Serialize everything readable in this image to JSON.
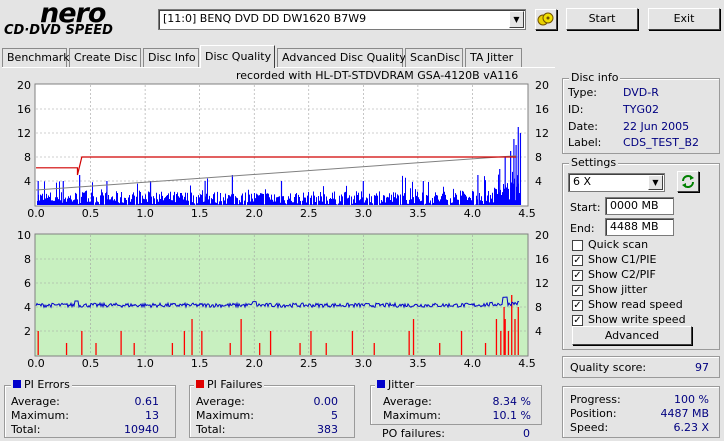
{
  "logo": {
    "nero": "nero",
    "sub": "CD·DVD SPEED"
  },
  "drive_select": {
    "value": "[11:0]  BENQ DVD DD DW1620 B7W9"
  },
  "buttons": {
    "start": "Start",
    "exit": "Exit",
    "advanced": "Advanced"
  },
  "tabs": [
    {
      "label": "Benchmark",
      "active": false
    },
    {
      "label": "Create Disc",
      "active": false
    },
    {
      "label": "Disc Info",
      "active": false
    },
    {
      "label": "Disc Quality",
      "active": true
    },
    {
      "label": "Advanced Disc Quality",
      "active": false
    },
    {
      "label": "ScanDisc",
      "active": false
    },
    {
      "label": "TA Jitter",
      "active": false
    }
  ],
  "recorded_with": "recorded with HL-DT-STDVDRAM GSA-4120B vA116",
  "disc_info": {
    "title": "Disc info",
    "rows": [
      {
        "label": "Type:",
        "value": "DVD-R"
      },
      {
        "label": "ID:",
        "value": "TYG02"
      },
      {
        "label": "Date:",
        "value": "22 Jun 2005"
      },
      {
        "label": "Label:",
        "value": "CDS_TEST_B2"
      }
    ]
  },
  "settings": {
    "title": "Settings",
    "speed": "6 X",
    "start_label": "Start:",
    "start_value": "0000 MB",
    "end_label": "End:",
    "end_value": "4488 MB",
    "checks": [
      {
        "label": "Quick scan",
        "checked": false
      },
      {
        "label": "Show C1/PIE",
        "checked": true
      },
      {
        "label": "Show C2/PIF",
        "checked": true
      },
      {
        "label": "Show jitter",
        "checked": true
      },
      {
        "label": "Show read speed",
        "checked": true
      },
      {
        "label": "Show write speed",
        "checked": true
      }
    ]
  },
  "quality": {
    "label": "Quality score:",
    "value": "97"
  },
  "progress": {
    "rows": [
      {
        "label": "Progress:",
        "value": "100 %"
      },
      {
        "label": "Position:",
        "value": "4487 MB"
      },
      {
        "label": "Speed:",
        "value": "6.23 X"
      }
    ]
  },
  "pi_errors": {
    "title": "PI Errors",
    "color": "#0000cc",
    "rows": [
      {
        "label": "Average:",
        "value": "0.61"
      },
      {
        "label": "Maximum:",
        "value": "13"
      },
      {
        "label": "Total:",
        "value": "10940"
      }
    ]
  },
  "pi_failures": {
    "title": "PI Failures",
    "color": "#e00000",
    "rows": [
      {
        "label": "Average:",
        "value": "0.00"
      },
      {
        "label": "Maximum:",
        "value": "5"
      },
      {
        "label": "Total:",
        "value": "383"
      }
    ]
  },
  "jitter": {
    "title": "Jitter",
    "color": "#0000cc",
    "rows": [
      {
        "label": "Average:",
        "value": "8.34 %"
      },
      {
        "label": "Maximum:",
        "value": "10.1 %"
      }
    ],
    "po_label": "PO failures:",
    "po_value": "0"
  },
  "chart_data": [
    {
      "type": "bar",
      "name": "PI Errors",
      "xlim": [
        0,
        4.5
      ],
      "ylim": [
        0,
        20
      ],
      "x_ticks": [
        "0.0",
        "0.5",
        "1.0",
        "1.5",
        "2.0",
        "2.5",
        "3.0",
        "3.5",
        "4.0",
        "4.5"
      ],
      "y_ticks_left": [
        "20",
        "16",
        "12",
        "8",
        "4"
      ],
      "y_ticks_right": [
        "20",
        "16",
        "12",
        "8",
        "4"
      ],
      "series": [
        {
          "kind": "pi_errors_bars",
          "color": "#0000ff",
          "baseline_range": [
            0,
            2
          ],
          "spikes": [
            {
              "x": 0.02,
              "y": 4
            },
            {
              "x": 0.25,
              "y": 4
            },
            {
              "x": 0.4,
              "y": 5
            },
            {
              "x": 0.65,
              "y": 4
            },
            {
              "x": 1.05,
              "y": 4
            },
            {
              "x": 1.55,
              "y": 4
            },
            {
              "x": 1.8,
              "y": 5
            },
            {
              "x": 2.25,
              "y": 4
            },
            {
              "x": 3.0,
              "y": 4
            },
            {
              "x": 3.55,
              "y": 4
            },
            {
              "x": 4.05,
              "y": 5
            },
            {
              "x": 4.25,
              "y": 6
            },
            {
              "x": 4.3,
              "y": 8
            },
            {
              "x": 4.35,
              "y": 9
            },
            {
              "x": 4.38,
              "y": 11
            },
            {
              "x": 4.4,
              "y": 10
            },
            {
              "x": 4.42,
              "y": 13
            },
            {
              "x": 4.44,
              "y": 12
            }
          ]
        },
        {
          "kind": "write_speed",
          "color": "#cc0000",
          "points": [
            [
              0,
              6.2
            ],
            [
              0.38,
              6.2
            ],
            [
              0.38,
              5
            ],
            [
              0.42,
              8
            ],
            [
              4.4,
              8
            ]
          ]
        },
        {
          "kind": "read_speed",
          "color": "#808080",
          "points": [
            [
              0,
              2.5
            ],
            [
              4.4,
              8.2
            ]
          ]
        }
      ]
    },
    {
      "type": "bar",
      "name": "PI Failures / Jitter",
      "xlim": [
        0,
        4.5
      ],
      "ylim": [
        0,
        10
      ],
      "ylim_right": [
        0,
        20
      ],
      "x_ticks": [
        "0.0",
        "0.5",
        "1.0",
        "1.5",
        "2.0",
        "2.5",
        "3.0",
        "3.5",
        "4.0",
        "4.5"
      ],
      "y_ticks_left": [
        "10",
        "8",
        "6",
        "4",
        "2"
      ],
      "y_ticks_right": [
        "20",
        "16",
        "12",
        "8",
        "4"
      ],
      "series": [
        {
          "kind": "pi_failures_bars",
          "color": "#ff0000",
          "bars": [
            {
              "x": 0.02,
              "y": 2
            },
            {
              "x": 0.28,
              "y": 1
            },
            {
              "x": 0.42,
              "y": 2
            },
            {
              "x": 0.55,
              "y": 1
            },
            {
              "x": 0.78,
              "y": 2
            },
            {
              "x": 0.9,
              "y": 1
            },
            {
              "x": 1.25,
              "y": 1
            },
            {
              "x": 1.36,
              "y": 2
            },
            {
              "x": 1.43,
              "y": 3
            },
            {
              "x": 1.52,
              "y": 2
            },
            {
              "x": 1.78,
              "y": 1
            },
            {
              "x": 1.88,
              "y": 3
            },
            {
              "x": 2.05,
              "y": 1
            },
            {
              "x": 2.15,
              "y": 2
            },
            {
              "x": 2.42,
              "y": 1
            },
            {
              "x": 2.52,
              "y": 2
            },
            {
              "x": 2.66,
              "y": 1
            },
            {
              "x": 2.9,
              "y": 2
            },
            {
              "x": 3.1,
              "y": 1
            },
            {
              "x": 3.42,
              "y": 2
            },
            {
              "x": 3.46,
              "y": 3
            },
            {
              "x": 3.7,
              "y": 1
            },
            {
              "x": 3.9,
              "y": 2
            },
            {
              "x": 4.12,
              "y": 1
            },
            {
              "x": 4.22,
              "y": 3
            },
            {
              "x": 4.26,
              "y": 2
            },
            {
              "x": 4.29,
              "y": 4
            },
            {
              "x": 4.3,
              "y": 3
            },
            {
              "x": 4.33,
              "y": 2
            },
            {
              "x": 4.36,
              "y": 5
            },
            {
              "x": 4.39,
              "y": 3
            },
            {
              "x": 4.42,
              "y": 4
            }
          ]
        },
        {
          "kind": "jitter",
          "color": "#0000cc",
          "level": 8.3,
          "noise": 0.35,
          "peaks": [
            {
              "x": 0.37,
              "y": 9
            },
            {
              "x": 2.0,
              "y": 8.9
            },
            {
              "x": 4.3,
              "y": 9.4
            }
          ]
        }
      ]
    }
  ]
}
